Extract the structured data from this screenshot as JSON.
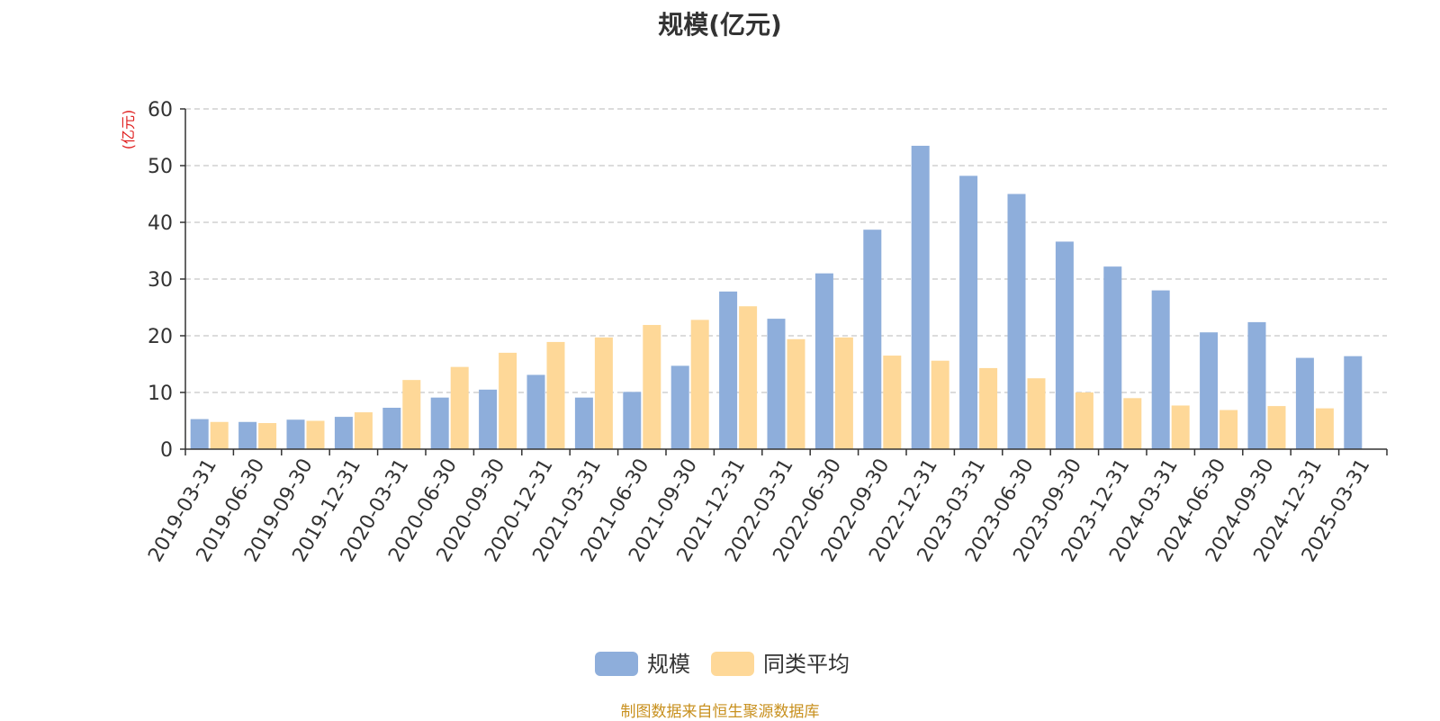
{
  "title": "规模(亿元)",
  "source_note": "制图数据来自恒生聚源数据库",
  "colors": {
    "series_0": "#8eaedb",
    "series_1": "#fed898",
    "grid": "#c8c8c8",
    "axis": "#333333"
  },
  "chart_data": {
    "type": "bar",
    "title": "规模(亿元)",
    "xlabel": "",
    "ylabel": "(亿元)",
    "ylim": [
      0,
      60
    ],
    "yticks": [
      0,
      10,
      20,
      30,
      40,
      50,
      60
    ],
    "grid": true,
    "legend_position": "bottom",
    "categories": [
      "2019-03-31",
      "2019-06-30",
      "2019-09-30",
      "2019-12-31",
      "2020-03-31",
      "2020-06-30",
      "2020-09-30",
      "2020-12-31",
      "2021-03-31",
      "2021-06-30",
      "2021-09-30",
      "2021-12-31",
      "2022-03-31",
      "2022-06-30",
      "2022-09-30",
      "2022-12-31",
      "2023-03-31",
      "2023-06-30",
      "2023-09-30",
      "2023-12-31",
      "2024-03-31",
      "2024-06-30",
      "2024-09-30",
      "2024-12-31",
      "2025-03-31"
    ],
    "series": [
      {
        "name": "规模",
        "values": [
          5.3,
          4.8,
          5.2,
          5.7,
          7.3,
          9.1,
          10.5,
          13.1,
          9.1,
          10.1,
          14.7,
          27.8,
          23.0,
          31.0,
          38.7,
          53.5,
          48.2,
          45.0,
          36.6,
          32.2,
          28.0,
          20.6,
          22.4,
          16.1,
          16.4
        ]
      },
      {
        "name": "同类平均",
        "values": [
          4.8,
          4.6,
          5.0,
          6.5,
          12.2,
          14.5,
          17.0,
          18.9,
          19.7,
          21.9,
          22.8,
          25.2,
          19.4,
          19.7,
          16.5,
          15.6,
          14.3,
          12.5,
          10.0,
          9.0,
          7.7,
          6.9,
          7.6,
          7.2,
          null
        ]
      }
    ]
  }
}
